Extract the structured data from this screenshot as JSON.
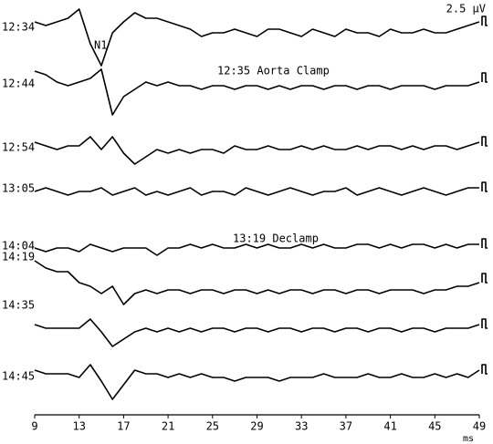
{
  "chart_data": {
    "type": "line",
    "x_label": "ms",
    "scale_bar_label": "2.5 μV",
    "scale_bar_value": 2.5,
    "annotations": [
      "N1",
      "12:35 Aorta Clamp",
      "13:19 Declamp"
    ],
    "xlim": [
      9,
      49
    ],
    "xticks": [
      9,
      13,
      17,
      21,
      25,
      29,
      33,
      37,
      41,
      45,
      49
    ],
    "x": [
      9,
      10,
      11,
      12,
      13,
      14,
      15,
      16,
      17,
      18,
      19,
      20,
      21,
      22,
      23,
      24,
      25,
      26,
      27,
      28,
      29,
      30,
      31,
      32,
      33,
      34,
      35,
      36,
      37,
      38,
      39,
      40,
      41,
      42,
      43,
      44,
      45,
      46,
      47,
      48,
      49
    ],
    "series": [
      {
        "name": "12:34",
        "color": "#000000",
        "values": [
          1,
          0,
          1,
          2,
          4.5,
          -5,
          -11,
          -2,
          1,
          3.5,
          2,
          2,
          1,
          0,
          -1,
          -3,
          -2,
          -2,
          -1,
          -2,
          -3,
          -1,
          -1,
          -2,
          -3,
          -1,
          -2,
          -3,
          -1,
          -2,
          -2,
          -3,
          -1,
          -2,
          -2,
          -1,
          -2,
          -2,
          -1,
          0,
          1
        ]
      },
      {
        "name": "12:44",
        "color": "#000000",
        "values": [
          3,
          2,
          0,
          -1,
          0,
          1,
          3.5,
          -9,
          -4,
          -2,
          0,
          -1,
          0,
          -1,
          -1,
          -2,
          -1,
          -1,
          -2,
          -1,
          -1,
          -2,
          -1,
          -2,
          -1,
          -1,
          -2,
          -1,
          -1,
          -2,
          -1,
          -1,
          -2,
          -1,
          -1,
          -1,
          -2,
          -1,
          -1,
          -1,
          0
        ]
      },
      {
        "name": "12:54",
        "color": "#000000",
        "values": [
          1,
          0,
          -1,
          0,
          0,
          2.5,
          -1,
          2.5,
          -2,
          -5,
          -3,
          -1,
          -2,
          -1,
          -2,
          -1,
          -1,
          -2,
          0,
          -1,
          -1,
          0,
          -1,
          -1,
          0,
          -1,
          0,
          -1,
          -1,
          0,
          -1,
          0,
          0,
          -1,
          0,
          -1,
          0,
          0,
          -1,
          0,
          1
        ]
      },
      {
        "name": "13:05",
        "color": "#000000",
        "values": [
          0,
          1,
          0,
          -1,
          0,
          0,
          1,
          -1,
          0,
          1,
          -1,
          0,
          -1,
          0,
          1,
          -1,
          0,
          0,
          -1,
          1,
          0,
          -1,
          0,
          1,
          0,
          -1,
          0,
          0,
          1,
          -1,
          0,
          1,
          0,
          -1,
          0,
          1,
          0,
          -1,
          0,
          1,
          1
        ]
      },
      {
        "name": "14:04",
        "color": "#000000",
        "values": [
          0,
          -1,
          0,
          0,
          -1,
          1,
          0,
          -1,
          0,
          0,
          0,
          -2,
          0,
          0,
          1,
          0,
          1,
          0,
          0,
          1,
          0,
          1,
          0,
          0,
          1,
          0,
          1,
          0,
          0,
          1,
          1,
          0,
          1,
          0,
          1,
          1,
          0,
          1,
          0,
          1,
          1
        ]
      },
      {
        "name": "14:19",
        "color": "#000000",
        "values": [
          6,
          4,
          3,
          3,
          0,
          -1,
          -3,
          -1,
          -6,
          -3,
          -2,
          -3,
          -2,
          -2,
          -3,
          -2,
          -2,
          -3,
          -2,
          -2,
          -3,
          -2,
          -3,
          -2,
          -2,
          -3,
          -2,
          -2,
          -3,
          -2,
          -2,
          -3,
          -2,
          -2,
          -2,
          -3,
          -2,
          -2,
          -1,
          -1,
          0
        ]
      },
      {
        "name": "14:35",
        "color": "#000000",
        "values": [
          1,
          0,
          0,
          0,
          0,
          2.5,
          -1,
          -5,
          -3,
          -1,
          0,
          -1,
          0,
          -1,
          0,
          -1,
          0,
          0,
          -1,
          0,
          0,
          -1,
          0,
          0,
          -1,
          0,
          0,
          -1,
          0,
          0,
          -1,
          0,
          0,
          -1,
          0,
          0,
          -1,
          0,
          0,
          0,
          1
        ]
      },
      {
        "name": "14:45",
        "color": "#000000",
        "values": [
          1,
          0,
          0,
          0,
          -1,
          2.5,
          -2,
          -7,
          -3,
          1,
          0,
          0,
          -1,
          0,
          -1,
          0,
          -1,
          -1,
          -2,
          -1,
          -1,
          -1,
          -2,
          -1,
          -1,
          -1,
          0,
          -1,
          -1,
          -1,
          0,
          -1,
          -1,
          0,
          -1,
          -1,
          0,
          -1,
          0,
          -1,
          1
        ]
      }
    ]
  }
}
